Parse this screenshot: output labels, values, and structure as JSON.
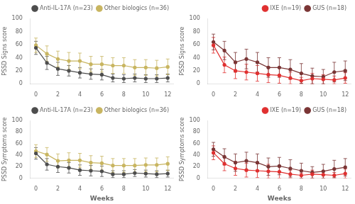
{
  "chart_data": [
    {
      "type": "line",
      "y_label": "PSSD Signs score",
      "x": [
        0,
        1,
        2,
        3,
        4,
        5,
        6,
        7,
        8,
        9,
        10,
        11,
        12
      ],
      "xlim": [
        -0.5,
        12.5
      ],
      "xticks": [
        0,
        2,
        4,
        6,
        8,
        10,
        12
      ],
      "ylim": [
        0,
        100
      ],
      "yticks": [
        0,
        20,
        40,
        60,
        80,
        100
      ],
      "grid": false,
      "legend": "upper right",
      "marker": "circle",
      "line_style": "solid",
      "series": [
        {
          "name": "Anti-IL-17A (n=23)",
          "color": "#4d4d4d",
          "values": [
            55,
            32,
            23,
            20,
            17,
            15,
            14,
            9,
            8,
            9,
            8,
            8,
            9
          ],
          "lower": [
            45,
            22,
            13,
            12,
            9,
            7,
            6,
            3,
            2,
            3,
            2,
            2,
            3
          ],
          "upper": [
            65,
            42,
            33,
            28,
            25,
            23,
            22,
            15,
            14,
            15,
            14,
            14,
            15
          ]
        },
        {
          "name": "Other biologics (n=36)",
          "color": "#c8b560",
          "values": [
            59,
            46,
            38,
            35,
            35,
            30,
            30,
            28,
            28,
            25,
            25,
            24,
            26
          ],
          "lower": [
            48,
            34,
            26,
            22,
            23,
            18,
            18,
            16,
            16,
            13,
            13,
            12,
            14
          ],
          "upper": [
            70,
            58,
            50,
            48,
            47,
            42,
            42,
            40,
            40,
            37,
            37,
            36,
            38
          ]
        }
      ]
    },
    {
      "type": "line",
      "y_label": "PSSD Signs score",
      "x": [
        0,
        1,
        2,
        3,
        4,
        5,
        6,
        7,
        8,
        9,
        10,
        11,
        12
      ],
      "xlim": [
        -0.5,
        12.5
      ],
      "xticks": [
        0,
        2,
        4,
        6,
        8,
        10,
        12
      ],
      "ylim": [
        0,
        100
      ],
      "yticks": [
        0,
        20,
        40,
        60,
        80,
        100
      ],
      "grid": false,
      "legend": "upper right",
      "marker": "circle",
      "line_style": "solid",
      "series": [
        {
          "name": "IXE (n=19)",
          "color": "#e03030",
          "values": [
            59,
            29,
            20,
            18,
            16,
            14,
            13,
            9,
            5,
            8,
            7,
            6,
            9
          ],
          "lower": [
            47,
            17,
            8,
            6,
            4,
            2,
            1,
            0,
            0,
            0,
            0,
            0,
            1
          ],
          "upper": [
            71,
            41,
            32,
            30,
            28,
            26,
            25,
            18,
            10,
            16,
            14,
            12,
            17
          ]
        },
        {
          "name": "GUS (n=18)",
          "color": "#7a3535",
          "values": [
            64,
            51,
            33,
            38,
            33,
            25,
            25,
            22,
            16,
            12,
            11,
            18,
            20
          ],
          "lower": [
            52,
            37,
            18,
            23,
            18,
            10,
            10,
            7,
            1,
            0,
            0,
            3,
            5
          ],
          "upper": [
            76,
            65,
            48,
            53,
            48,
            40,
            40,
            37,
            31,
            24,
            22,
            33,
            35
          ]
        }
      ]
    },
    {
      "type": "line",
      "y_label": "PSSD Symptoms score",
      "x_label": "Weeks",
      "x": [
        0,
        1,
        2,
        3,
        4,
        5,
        6,
        7,
        8,
        9,
        10,
        11,
        12
      ],
      "xlim": [
        -0.5,
        12.5
      ],
      "xticks": [
        0,
        2,
        4,
        6,
        8,
        10,
        12
      ],
      "ylim": [
        0,
        100
      ],
      "yticks": [
        0,
        20,
        40,
        60,
        80,
        100
      ],
      "grid": false,
      "legend": "upper right",
      "marker": "circle",
      "line_style": "solid",
      "series": [
        {
          "name": "Anti-IL-17A (n=23)",
          "color": "#4d4d4d",
          "values": [
            43,
            24,
            20,
            18,
            14,
            13,
            12,
            7,
            7,
            9,
            8,
            7,
            8
          ],
          "lower": [
            33,
            14,
            10,
            9,
            5,
            4,
            3,
            1,
            1,
            3,
            2,
            1,
            2
          ],
          "upper": [
            53,
            34,
            30,
            27,
            23,
            22,
            21,
            13,
            13,
            15,
            14,
            13,
            14
          ]
        },
        {
          "name": "Other biologics (n=36)",
          "color": "#c8b560",
          "values": [
            47,
            41,
            30,
            31,
            31,
            27,
            26,
            22,
            22,
            22,
            23,
            23,
            25
          ],
          "lower": [
            36,
            29,
            18,
            18,
            19,
            15,
            14,
            10,
            10,
            10,
            11,
            11,
            13
          ],
          "upper": [
            58,
            53,
            42,
            44,
            43,
            39,
            38,
            34,
            34,
            34,
            35,
            35,
            37
          ]
        }
      ]
    },
    {
      "type": "line",
      "y_label": "PSSD Symptoms score",
      "x_label": "Weeks",
      "x": [
        0,
        1,
        2,
        3,
        4,
        5,
        6,
        7,
        8,
        9,
        10,
        11,
        12
      ],
      "xlim": [
        -0.5,
        12.5
      ],
      "xticks": [
        0,
        2,
        4,
        6,
        8,
        10,
        12
      ],
      "ylim": [
        0,
        100
      ],
      "yticks": [
        0,
        20,
        40,
        60,
        80,
        100
      ],
      "grid": false,
      "legend": "upper right",
      "marker": "circle",
      "line_style": "solid",
      "series": [
        {
          "name": "IXE (n=19)",
          "color": "#e03030",
          "values": [
            44,
            25,
            17,
            14,
            13,
            12,
            11,
            7,
            5,
            7,
            6,
            5,
            8
          ],
          "lower": [
            32,
            13,
            5,
            2,
            1,
            0,
            0,
            0,
            0,
            0,
            0,
            0,
            0
          ],
          "upper": [
            56,
            37,
            29,
            26,
            25,
            24,
            22,
            14,
            9,
            14,
            12,
            10,
            16
          ]
        },
        {
          "name": "GUS (n=18)",
          "color": "#7a3535",
          "values": [
            50,
            37,
            27,
            30,
            27,
            20,
            21,
            17,
            13,
            10,
            12,
            16,
            19
          ],
          "lower": [
            38,
            23,
            12,
            15,
            12,
            5,
            6,
            2,
            0,
            0,
            0,
            1,
            4
          ],
          "upper": [
            62,
            51,
            42,
            45,
            42,
            35,
            36,
            32,
            26,
            20,
            24,
            31,
            34
          ]
        }
      ]
    }
  ]
}
